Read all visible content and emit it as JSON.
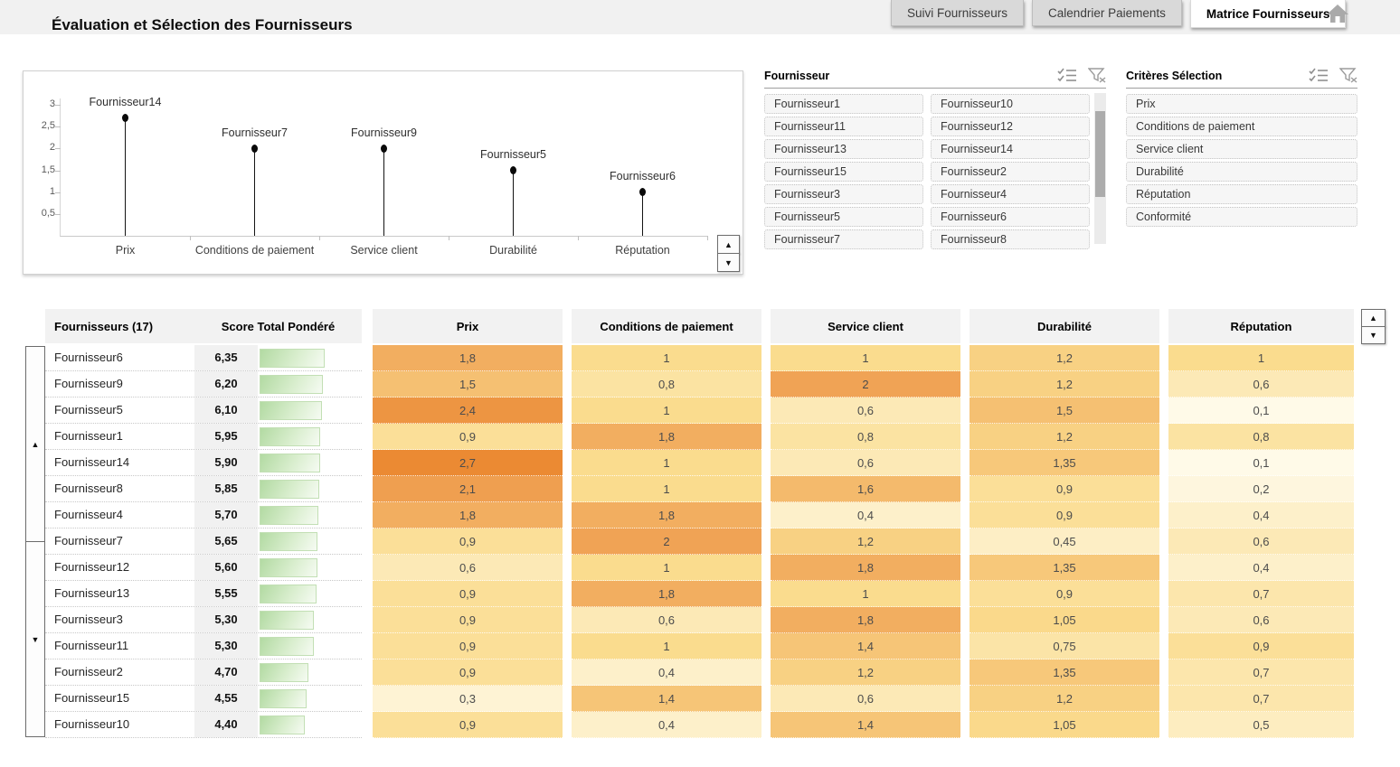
{
  "header": {
    "title": "Évaluation et Sélection des Fournisseurs",
    "tabs": [
      {
        "label": "Suivi Fournisseurs",
        "active": false
      },
      {
        "label": "Calendrier Paiements",
        "active": false
      },
      {
        "label": "Matrice Fournisseurs",
        "active": true
      }
    ],
    "home_icon": "home-icon"
  },
  "chart_data": {
    "type": "lollipop",
    "title": "",
    "xlabel": "",
    "ylabel": "",
    "categories": [
      "Prix",
      "Conditions de paiement",
      "Service client",
      "Durabilité",
      "Réputation"
    ],
    "points": [
      {
        "category": "Prix",
        "label": "Fournisseur14",
        "value": 2.7
      },
      {
        "category": "Conditions de paiement",
        "label": "Fournisseur7",
        "value": 2
      },
      {
        "category": "Service client",
        "label": "Fournisseur9",
        "value": 2
      },
      {
        "category": "Durabilité",
        "label": "Fournisseur5",
        "value": 1.5
      },
      {
        "category": "Réputation",
        "label": "Fournisseur6",
        "value": 1
      }
    ],
    "ylim": [
      0,
      3.15
    ],
    "yticks": [
      {
        "value": 3,
        "label": "3"
      },
      {
        "value": 2.5,
        "label": "2,5"
      },
      {
        "value": 2,
        "label": "2"
      },
      {
        "value": 1.5,
        "label": "1,5"
      },
      {
        "value": 1,
        "label": "1"
      },
      {
        "value": 0.5,
        "label": "0,5"
      }
    ],
    "grid": false,
    "legend": "none"
  },
  "fournisseur_listbox": {
    "title": "Fournisseur",
    "icons": [
      "select-possible-icon",
      "clear-filter-icon"
    ],
    "items": [
      "Fournisseur1",
      "Fournisseur10",
      "Fournisseur11",
      "Fournisseur12",
      "Fournisseur13",
      "Fournisseur14",
      "Fournisseur15",
      "Fournisseur2",
      "Fournisseur3",
      "Fournisseur4",
      "Fournisseur5",
      "Fournisseur6",
      "Fournisseur7",
      "Fournisseur8"
    ]
  },
  "criteres_listbox": {
    "title": "Critères Sélection",
    "icons": [
      "select-possible-icon",
      "clear-filter-icon"
    ],
    "items": [
      "Prix",
      "Conditions de paiement",
      "Service client",
      "Durabilité",
      "Réputation",
      "Conformité"
    ]
  },
  "table": {
    "headers": {
      "suppliers": "Fournisseurs (17)",
      "score": "Score Total Pondéré",
      "criteria": [
        "Prix",
        "Conditions de paiement",
        "Service client",
        "Durabilité",
        "Réputation"
      ]
    },
    "rows": [
      {
        "name": "Fournisseur6",
        "score_display": "6,35",
        "score": 6.35,
        "values_display": [
          "1,8",
          "1",
          "1",
          "1,2",
          "1"
        ],
        "values": [
          1.8,
          1,
          1,
          1.2,
          1
        ]
      },
      {
        "name": "Fournisseur9",
        "score_display": "6,20",
        "score": 6.2,
        "values_display": [
          "1,5",
          "0,8",
          "2",
          "1,2",
          "0,6"
        ],
        "values": [
          1.5,
          0.8,
          2,
          1.2,
          0.6
        ]
      },
      {
        "name": "Fournisseur5",
        "score_display": "6,10",
        "score": 6.1,
        "values_display": [
          "2,4",
          "1",
          "0,6",
          "1,5",
          "0,1"
        ],
        "values": [
          2.4,
          1,
          0.6,
          1.5,
          0.1
        ]
      },
      {
        "name": "Fournisseur1",
        "score_display": "5,95",
        "score": 5.95,
        "values_display": [
          "0,9",
          "1,8",
          "0,8",
          "1,2",
          "0,8"
        ],
        "values": [
          0.9,
          1.8,
          0.8,
          1.2,
          0.8
        ]
      },
      {
        "name": "Fournisseur14",
        "score_display": "5,90",
        "score": 5.9,
        "values_display": [
          "2,7",
          "1",
          "0,6",
          "1,35",
          "0,1"
        ],
        "values": [
          2.7,
          1,
          0.6,
          1.35,
          0.1
        ]
      },
      {
        "name": "Fournisseur8",
        "score_display": "5,85",
        "score": 5.85,
        "values_display": [
          "2,1",
          "1",
          "1,6",
          "0,9",
          "0,2"
        ],
        "values": [
          2.1,
          1,
          1.6,
          0.9,
          0.2
        ]
      },
      {
        "name": "Fournisseur4",
        "score_display": "5,70",
        "score": 5.7,
        "values_display": [
          "1,8",
          "1,8",
          "0,4",
          "0,9",
          "0,4"
        ],
        "values": [
          1.8,
          1.8,
          0.4,
          0.9,
          0.4
        ]
      },
      {
        "name": "Fournisseur7",
        "score_display": "5,65",
        "score": 5.65,
        "values_display": [
          "0,9",
          "2",
          "1,2",
          "0,45",
          "0,6"
        ],
        "values": [
          0.9,
          2,
          1.2,
          0.45,
          0.6
        ]
      },
      {
        "name": "Fournisseur12",
        "score_display": "5,60",
        "score": 5.6,
        "values_display": [
          "0,6",
          "1",
          "1,8",
          "1,35",
          "0,4"
        ],
        "values": [
          0.6,
          1,
          1.8,
          1.35,
          0.4
        ]
      },
      {
        "name": "Fournisseur13",
        "score_display": "5,55",
        "score": 5.55,
        "values_display": [
          "0,9",
          "1,8",
          "1",
          "0,9",
          "0,7"
        ],
        "values": [
          0.9,
          1.8,
          1,
          0.9,
          0.7
        ]
      },
      {
        "name": "Fournisseur3",
        "score_display": "5,30",
        "score": 5.3,
        "values_display": [
          "0,9",
          "0,6",
          "1,8",
          "1,05",
          "0,6"
        ],
        "values": [
          0.9,
          0.6,
          1.8,
          1.05,
          0.6
        ]
      },
      {
        "name": "Fournisseur11",
        "score_display": "5,30",
        "score": 5.3,
        "values_display": [
          "0,9",
          "1",
          "1,4",
          "0,75",
          "0,9"
        ],
        "values": [
          0.9,
          1,
          1.4,
          0.75,
          0.9
        ]
      },
      {
        "name": "Fournisseur2",
        "score_display": "4,70",
        "score": 4.7,
        "values_display": [
          "0,9",
          "0,4",
          "1,2",
          "1,35",
          "0,7"
        ],
        "values": [
          0.9,
          0.4,
          1.2,
          1.35,
          0.7
        ]
      },
      {
        "name": "Fournisseur15",
        "score_display": "4,55",
        "score": 4.55,
        "values_display": [
          "0,3",
          "1,4",
          "0,6",
          "1,2",
          "0,7"
        ],
        "values": [
          0.3,
          1.4,
          0.6,
          1.2,
          0.7
        ]
      },
      {
        "name": "Fournisseur10",
        "score_display": "4,40",
        "score": 4.4,
        "values_display": [
          "0,9",
          "0,4",
          "1,4",
          "1,05",
          "0,5"
        ],
        "values": [
          0.9,
          0.4,
          1.4,
          1.05,
          0.5
        ]
      }
    ]
  },
  "scroll_icons": {
    "up": "▲",
    "down": "▼"
  },
  "colors": {
    "header_bg": "#F1F1F1",
    "tab_inactive_bg": "#D9D9D9",
    "tab_active_bg": "#FFFFFF",
    "table_header_bg": "#F2F2F2",
    "score_bar_green": "#B2DAA2",
    "heatmap_stops": [
      {
        "value": 0,
        "color": "#FFFDF2"
      },
      {
        "value": 1,
        "color": "#FADC8E"
      },
      {
        "value": 2,
        "color": "#F0A355"
      },
      {
        "value": 2.7,
        "color": "#EB8A33"
      }
    ]
  }
}
